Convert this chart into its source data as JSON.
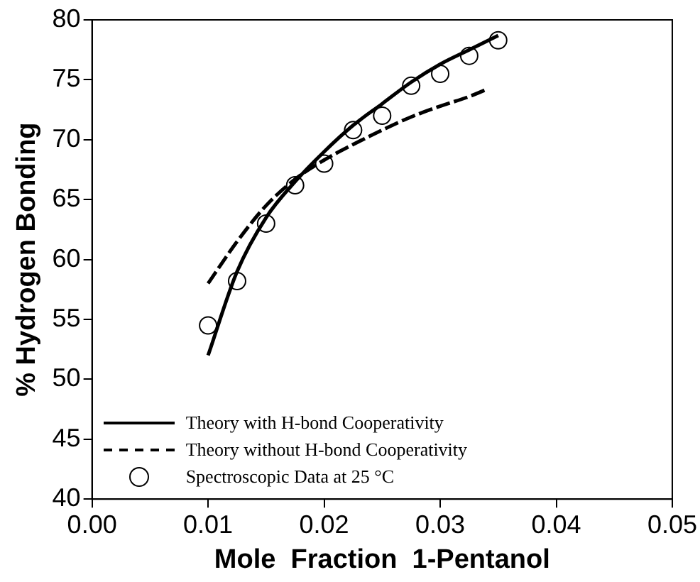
{
  "chart_data": {
    "type": "line",
    "xlabel": "Mole  Fraction  1-Pentanol",
    "ylabel": "% Hydrogen Bonding",
    "xlim": [
      0,
      0.05
    ],
    "xticks": [
      {
        "value": 0,
        "label": "0.00"
      },
      {
        "value": 0.01,
        "label": "0.01"
      },
      {
        "value": 0.02,
        "label": "0.02"
      },
      {
        "value": 0.03,
        "label": "0.03"
      },
      {
        "value": 0.04,
        "label": "0.04"
      },
      {
        "value": 0.05,
        "label": "0.05"
      }
    ],
    "ylim": [
      40,
      80
    ],
    "yticks": [
      40,
      45,
      50,
      55,
      60,
      65,
      70,
      75,
      80
    ],
    "grid": false,
    "legend": "bottom left",
    "series": [
      {
        "name": "Theory with H-bond Cooperativity",
        "type": "line",
        "color": "#000000",
        "line_style": "solid",
        "marker": "none",
        "x": [
          0.01,
          0.0125,
          0.015,
          0.0175,
          0.02,
          0.0225,
          0.025,
          0.0275,
          0.03,
          0.0325,
          0.035
        ],
        "values": [
          52,
          59,
          63.5,
          66.5,
          69,
          71.2,
          73,
          74.8,
          76.3,
          77.5,
          78.7
        ]
      },
      {
        "name": "Theory without H-bond Cooperativity",
        "type": "line",
        "color": "#000000",
        "line_style": "dashed",
        "marker": "none",
        "x": [
          0.01,
          0.0125,
          0.015,
          0.0175,
          0.02,
          0.0225,
          0.025,
          0.0275,
          0.03,
          0.0325,
          0.034
        ],
        "values": [
          58,
          61.5,
          64.5,
          66.7,
          68.3,
          69.6,
          70.8,
          71.9,
          72.8,
          73.6,
          74.2
        ]
      },
      {
        "name": "Spectroscopic Data at 25 °C",
        "type": "scatter",
        "color": "#000000",
        "marker": "circle",
        "x": [
          0.01,
          0.0125,
          0.015,
          0.0175,
          0.02,
          0.0225,
          0.025,
          0.0275,
          0.03,
          0.0325,
          0.035
        ],
        "values": [
          54.5,
          58.2,
          63,
          66.2,
          68,
          70.8,
          72,
          74.5,
          75.5,
          77,
          78.3
        ]
      }
    ]
  }
}
